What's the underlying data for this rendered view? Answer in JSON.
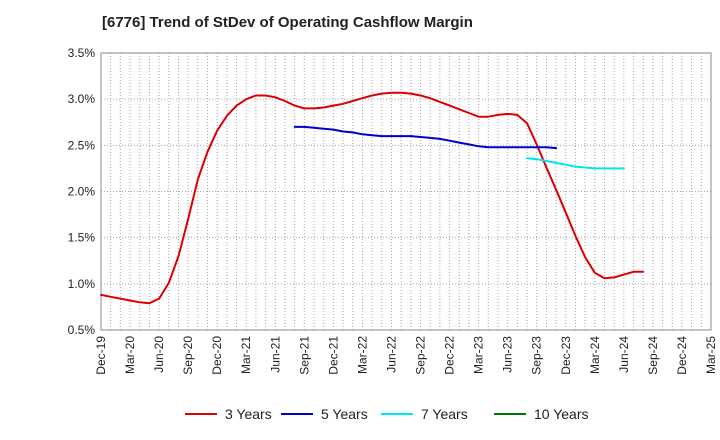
{
  "chart_data": {
    "type": "line",
    "title": "[6776]  Trend of StDev of Operating Cashflow Margin",
    "xlabel": "",
    "ylabel": "",
    "x_categories": [
      "Dec-19",
      "Mar-20",
      "Jun-20",
      "Sep-20",
      "Dec-20",
      "Mar-21",
      "Jun-21",
      "Sep-21",
      "Dec-21",
      "Mar-22",
      "Jun-22",
      "Sep-22",
      "Dec-22",
      "Mar-23",
      "Jun-23",
      "Sep-23",
      "Dec-23",
      "Mar-24",
      "Jun-24",
      "Sep-24",
      "Dec-24",
      "Mar-25"
    ],
    "ylim": [
      0.5,
      3.5
    ],
    "y_ticks": [
      0.5,
      1.0,
      1.5,
      2.0,
      2.5,
      3.0,
      3.5
    ],
    "y_tick_labels": [
      "0.5%",
      "1.0%",
      "1.5%",
      "2.0%",
      "2.5%",
      "3.0%",
      "3.5%"
    ],
    "grid": true,
    "legend_position": "bottom",
    "series": [
      {
        "name": "3 Years",
        "color": "#dd0000",
        "start_index": 0,
        "values": [
          0.88,
          0.86,
          0.84,
          0.82,
          0.8,
          0.79,
          0.84,
          1.01,
          1.3,
          1.7,
          2.13,
          2.43,
          2.66,
          2.82,
          2.93,
          3.0,
          3.04,
          3.04,
          3.02,
          2.98,
          2.93,
          2.9,
          2.9,
          2.91,
          2.93,
          2.95,
          2.98,
          3.01,
          3.04,
          3.06,
          3.07,
          3.07,
          3.06,
          3.04,
          3.01,
          2.97,
          2.93,
          2.89,
          2.85,
          2.81,
          2.81,
          2.83,
          2.84,
          2.83,
          2.74,
          2.51,
          2.26,
          2.02,
          1.77,
          1.52,
          1.29,
          1.12,
          1.06,
          1.07,
          1.1,
          1.13,
          1.13
        ]
      },
      {
        "name": "5 Years",
        "color": "#0000cc",
        "start_index": 20,
        "values": [
          2.7,
          2.7,
          2.69,
          2.68,
          2.67,
          2.65,
          2.64,
          2.62,
          2.61,
          2.6,
          2.6,
          2.6,
          2.6,
          2.59,
          2.58,
          2.57,
          2.55,
          2.53,
          2.51,
          2.49,
          2.48,
          2.48,
          2.48,
          2.48,
          2.48,
          2.48,
          2.48,
          2.47
        ]
      },
      {
        "name": "7 Years",
        "color": "#00e5ee",
        "start_index": 44,
        "values": [
          2.36,
          2.35,
          2.33,
          2.31,
          2.29,
          2.27,
          2.26,
          2.25,
          2.25,
          2.25,
          2.25
        ]
      },
      {
        "name": "10 Years",
        "color": "#007700",
        "start_index": 0,
        "values": []
      }
    ]
  }
}
